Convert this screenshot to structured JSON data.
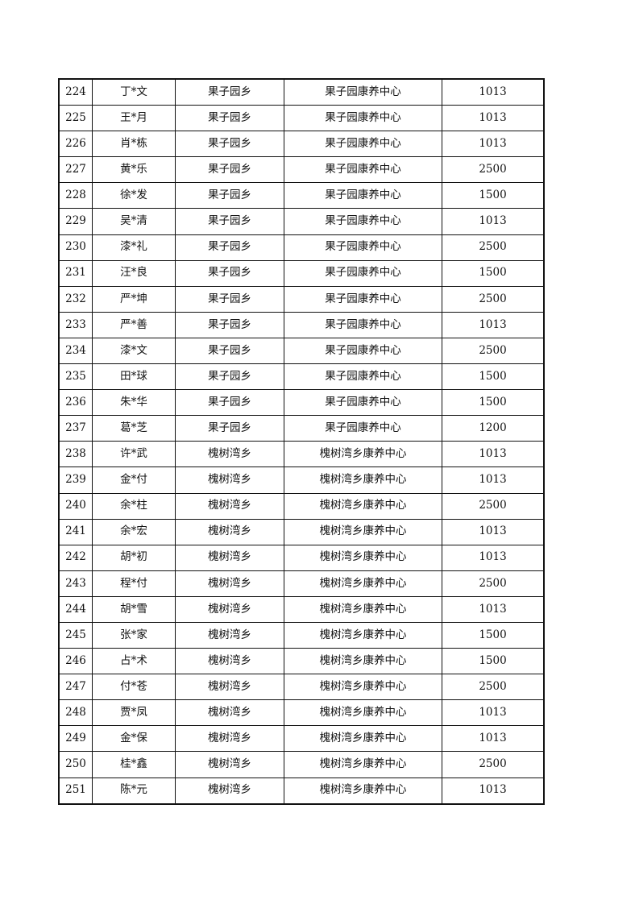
{
  "rows": [
    [
      "224",
      "丁*文",
      "果子园乡",
      "果子园康养中心",
      "1013"
    ],
    [
      "225",
      "王*月",
      "果子园乡",
      "果子园康养中心",
      "1013"
    ],
    [
      "226",
      "肖*栋",
      "果子园乡",
      "果子园康养中心",
      "1013"
    ],
    [
      "227",
      "黄*乐",
      "果子园乡",
      "果子园康养中心",
      "2500"
    ],
    [
      "228",
      "徐*发",
      "果子园乡",
      "果子园康养中心",
      "1500"
    ],
    [
      "229",
      "吴*清",
      "果子园乡",
      "果子园康养中心",
      "1013"
    ],
    [
      "230",
      "漆*礼",
      "果子园乡",
      "果子园康养中心",
      "2500"
    ],
    [
      "231",
      "汪*良",
      "果子园乡",
      "果子园康养中心",
      "1500"
    ],
    [
      "232",
      "严*坤",
      "果子园乡",
      "果子园康养中心",
      "2500"
    ],
    [
      "233",
      "严*善",
      "果子园乡",
      "果子园康养中心",
      "1013"
    ],
    [
      "234",
      "漆*文",
      "果子园乡",
      "果子园康养中心",
      "2500"
    ],
    [
      "235",
      "田*球",
      "果子园乡",
      "果子园康养中心",
      "1500"
    ],
    [
      "236",
      "朱*华",
      "果子园乡",
      "果子园康养中心",
      "1500"
    ],
    [
      "237",
      "葛*芝",
      "果子园乡",
      "果子园康养中心",
      "1200"
    ],
    [
      "238",
      "许*武",
      "槐树湾乡",
      "槐树湾乡康养中心",
      "1013"
    ],
    [
      "239",
      "金*付",
      "槐树湾乡",
      "槐树湾乡康养中心",
      "1013"
    ],
    [
      "240",
      "余*柱",
      "槐树湾乡",
      "槐树湾乡康养中心",
      "2500"
    ],
    [
      "241",
      "余*宏",
      "槐树湾乡",
      "槐树湾乡康养中心",
      "1013"
    ],
    [
      "242",
      "胡*初",
      "槐树湾乡",
      "槐树湾乡康养中心",
      "1013"
    ],
    [
      "243",
      "程*付",
      "槐树湾乡",
      "槐树湾乡康养中心",
      "2500"
    ],
    [
      "244",
      "胡*雪",
      "槐树湾乡",
      "槐树湾乡康养中心",
      "1013"
    ],
    [
      "245",
      "张*家",
      "槐树湾乡",
      "槐树湾乡康养中心",
      "1500"
    ],
    [
      "246",
      "占*术",
      "槐树湾乡",
      "槐树湾乡康养中心",
      "1500"
    ],
    [
      "247",
      "付*苍",
      "槐树湾乡",
      "槐树湾乡康养中心",
      "2500"
    ],
    [
      "248",
      "贾*凤",
      "槐树湾乡",
      "槐树湾乡康养中心",
      "1013"
    ],
    [
      "249",
      "金*保",
      "槐树湾乡",
      "槐树湾乡康养中心",
      "1013"
    ],
    [
      "250",
      "桂*鑫",
      "槐树湾乡",
      "槐树湾乡康养中心",
      "2500"
    ],
    [
      "251",
      "陈*元",
      "槐树湾乡",
      "槐树湾乡康养中心",
      "1013"
    ]
  ]
}
